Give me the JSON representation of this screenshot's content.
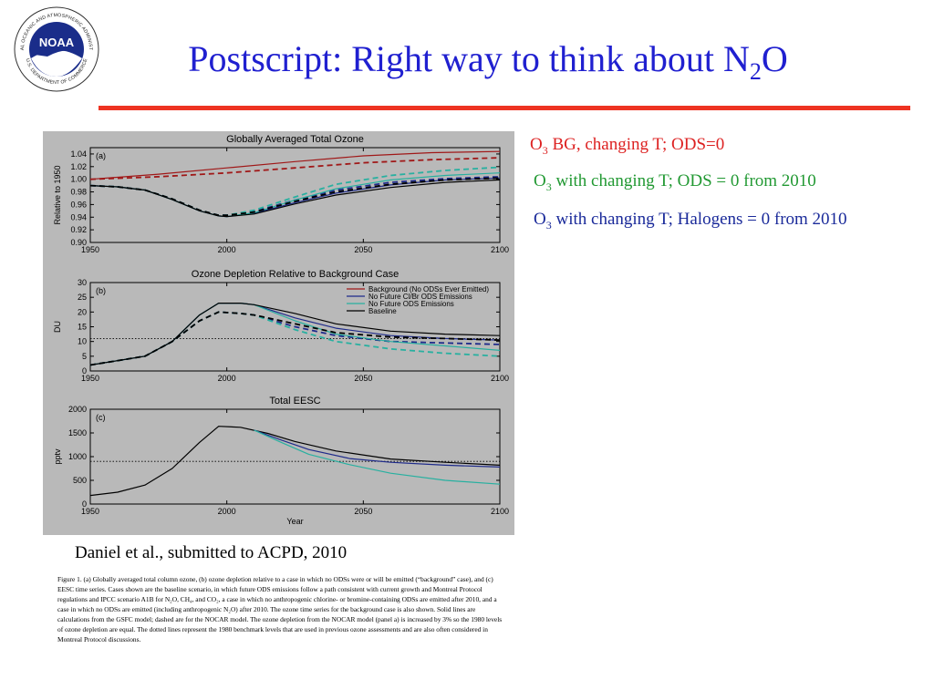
{
  "slide": {
    "title_main": "Postscript: Right way to think about N",
    "title_sub": "2",
    "title_end": "O",
    "logo_text": "NOAA",
    "logo_ring_top": "NATIONAL OCEANIC AND ATMOSPHERIC ADMINISTRATION",
    "logo_ring_bottom": "U.S. DEPARTMENT OF COMMERCE",
    "citation": "Daniel et al., submitted to ACPD, 2010",
    "caption": "Figure 1.  (a) Globally averaged total column ozone, (b) ozone depletion relative to a case in which no ODSs were or will be emitted (“background” case), and (c) EESC time series.  Cases shown are the baseline scenario, in which future ODS emissions follow a path consistent with current growth and Montreal Protocol regulations and IPCC scenario A1B for N₂O, CH₄, and CO₂, a case in which no anthropogenic chlorine- or bromine-containing ODSs are emitted after 2010, and a case in which no ODSs are emitted (including anthropogenic N₂O) after 2010.  The ozone time series for the background case is also shown.  Solid lines are calculations from the GSFC model; dashed are for the NOCAR model. The ozone depletion from the NOCAR model (panel a) is increased by 3% so the 1980 levels of ozone depletion are equal. The dotted lines represent the 1980 benchmark levels that are used in previous ozone assessments and are also often considered in Montreal Protocol discussions.",
    "notes": [
      {
        "pre": "O",
        "sub": "3",
        "post": " BG, changing T; ODS=0",
        "color": "#dd2222"
      },
      {
        "pre": "O",
        "sub": "3",
        "post": " with changing T; ODS = 0 from 2010",
        "color": "#229933"
      },
      {
        "pre": "O",
        "sub": "3",
        "post": " with changing T; Halogens = 0 from 2010",
        "color": "#1a2a9a"
      }
    ]
  },
  "chart_data": [
    {
      "type": "line",
      "title": "Globally Averaged Total Ozone",
      "panel_label": "(a)",
      "xlabel": "",
      "ylabel": "Relative to 1950",
      "xlim": [
        1950,
        2100
      ],
      "ylim": [
        0.9,
        1.05
      ],
      "xticks": [
        1950,
        2000,
        2050,
        2100
      ],
      "yticks": [
        0.9,
        0.92,
        0.94,
        0.96,
        0.98,
        1.0,
        1.02,
        1.04
      ],
      "ytick_labels": [
        "0.90",
        "0.92",
        "0.94",
        "0.96",
        "0.98",
        "1.00",
        "1.02",
        "1.04"
      ],
      "series": [
        {
          "name": "Background (No ODSs Ever Emitted)",
          "color": "#a01818",
          "dash": false,
          "x": [
            1950,
            1975,
            2000,
            2025,
            2050,
            2075,
            2100
          ],
          "y": [
            1.0,
            1.008,
            1.018,
            1.028,
            1.037,
            1.042,
            1.044
          ]
        },
        {
          "name": "Background (No ODSs Ever Emitted)",
          "color": "#a01818",
          "dash": true,
          "x": [
            1950,
            1975,
            2000,
            2025,
            2050,
            2075,
            2100
          ],
          "y": [
            1.0,
            1.004,
            1.01,
            1.018,
            1.026,
            1.031,
            1.034
          ]
        },
        {
          "name": "No Future Cl/Br ODS Emissions",
          "color": "#1e2a8a",
          "dash": false,
          "x": [
            1950,
            1960,
            1970,
            1980,
            1990,
            1997,
            2000,
            2010,
            2025,
            2040,
            2060,
            2080,
            2100
          ],
          "y": [
            0.99,
            0.988,
            0.983,
            0.968,
            0.95,
            0.942,
            0.941,
            0.946,
            0.963,
            0.978,
            0.991,
            0.999,
            1.002
          ]
        },
        {
          "name": "No Future Cl/Br ODS Emissions",
          "color": "#1e2a8a",
          "dash": true,
          "x": [
            1950,
            1960,
            1970,
            1980,
            1990,
            1997,
            2000,
            2010,
            2025,
            2040,
            2060,
            2080,
            2100
          ],
          "y": [
            0.99,
            0.988,
            0.983,
            0.969,
            0.951,
            0.943,
            0.943,
            0.949,
            0.967,
            0.983,
            0.995,
            1.001,
            1.004
          ]
        },
        {
          "name": "No Future ODS Emissions",
          "color": "#28b0a0",
          "dash": false,
          "x": [
            1950,
            1960,
            1970,
            1980,
            1990,
            1997,
            2000,
            2010,
            2025,
            2040,
            2060,
            2080,
            2100
          ],
          "y": [
            0.99,
            0.988,
            0.983,
            0.968,
            0.95,
            0.942,
            0.941,
            0.947,
            0.967,
            0.985,
            0.999,
            1.006,
            1.01
          ]
        },
        {
          "name": "No Future ODS Emissions",
          "color": "#28b0a0",
          "dash": true,
          "x": [
            1950,
            1960,
            1970,
            1980,
            1990,
            1997,
            2000,
            2010,
            2025,
            2040,
            2060,
            2080,
            2100
          ],
          "y": [
            0.99,
            0.988,
            0.983,
            0.969,
            0.951,
            0.943,
            0.943,
            0.951,
            0.972,
            0.992,
            1.006,
            1.014,
            1.019
          ]
        },
        {
          "name": "Baseline",
          "color": "#000000",
          "dash": false,
          "x": [
            1950,
            1960,
            1970,
            1980,
            1990,
            1997,
            2000,
            2010,
            2025,
            2040,
            2060,
            2080,
            2100
          ],
          "y": [
            0.99,
            0.988,
            0.983,
            0.968,
            0.95,
            0.942,
            0.941,
            0.945,
            0.961,
            0.975,
            0.987,
            0.995,
            0.999
          ]
        },
        {
          "name": "Baseline",
          "color": "#000000",
          "dash": true,
          "x": [
            1950,
            1960,
            1970,
            1980,
            1990,
            1997,
            2000,
            2010,
            2025,
            2040,
            2060,
            2080,
            2100
          ],
          "y": [
            0.99,
            0.988,
            0.983,
            0.969,
            0.951,
            0.943,
            0.943,
            0.948,
            0.965,
            0.98,
            0.992,
            0.999,
            1.002
          ]
        }
      ],
      "grid": false,
      "legend": "none"
    },
    {
      "type": "line",
      "title": "Ozone Depletion Relative to Background Case",
      "panel_label": "(b)",
      "xlabel": "",
      "ylabel": "DU",
      "xlim": [
        1950,
        2100
      ],
      "ylim": [
        0,
        30
      ],
      "xticks": [
        1950,
        2000,
        2050,
        2100
      ],
      "yticks": [
        0,
        5,
        10,
        15,
        20,
        25,
        30
      ],
      "ytick_labels": [
        "0",
        "5",
        "10",
        "15",
        "20",
        "25",
        "30"
      ],
      "benchmark_1980": 11,
      "series": [
        {
          "name": "No Future Cl/Br ODS Emissions",
          "color": "#1e2a8a",
          "dash": false,
          "x": [
            1950,
            1970,
            1980,
            1990,
            1997,
            2005,
            2010,
            2025,
            2040,
            2060,
            2080,
            2100
          ],
          "y": [
            2,
            5,
            10,
            19,
            23,
            23,
            22.5,
            18,
            14.5,
            12,
            11,
            10.5
          ]
        },
        {
          "name": "No Future Cl/Br ODS Emissions",
          "color": "#1e2a8a",
          "dash": true,
          "x": [
            1950,
            1970,
            1980,
            1990,
            1997,
            2005,
            2010,
            2025,
            2040,
            2060,
            2080,
            2100
          ],
          "y": [
            2,
            5,
            10,
            17,
            20,
            19.5,
            19,
            15,
            12,
            10,
            9.5,
            9
          ]
        },
        {
          "name": "No Future ODS Emissions",
          "color": "#28b0a0",
          "dash": false,
          "x": [
            1950,
            1970,
            1980,
            1990,
            1997,
            2005,
            2010,
            2025,
            2040,
            2060,
            2080,
            2100
          ],
          "y": [
            2,
            5,
            10,
            19,
            23,
            23,
            22.5,
            17,
            12.5,
            10,
            8.5,
            7
          ]
        },
        {
          "name": "No Future ODS Emissions",
          "color": "#28b0a0",
          "dash": true,
          "x": [
            1950,
            1970,
            1980,
            1990,
            1997,
            2005,
            2010,
            2025,
            2040,
            2060,
            2080,
            2100
          ],
          "y": [
            2,
            5,
            10,
            17,
            20,
            19.5,
            19,
            14,
            10,
            7.5,
            6,
            5
          ]
        },
        {
          "name": "Baseline",
          "color": "#000000",
          "dash": false,
          "x": [
            1950,
            1970,
            1980,
            1990,
            1997,
            2005,
            2010,
            2025,
            2040,
            2060,
            2080,
            2100
          ],
          "y": [
            2,
            5,
            10,
            19,
            23,
            23,
            22.5,
            19.5,
            16,
            13.5,
            12.5,
            12
          ]
        },
        {
          "name": "Baseline",
          "color": "#000000",
          "dash": true,
          "x": [
            1950,
            1970,
            1980,
            1990,
            1997,
            2005,
            2010,
            2025,
            2040,
            2060,
            2080,
            2100
          ],
          "y": [
            2,
            5,
            10,
            17,
            20,
            19.5,
            19,
            16,
            13,
            11.5,
            11,
            10.5
          ]
        }
      ],
      "legend_entries": [
        {
          "label": "Background (No ODSs Ever Emitted)",
          "color": "#a01818"
        },
        {
          "label": "No Future Cl/Br ODS Emissions",
          "color": "#1e2a8a"
        },
        {
          "label": "No Future ODS Emissions",
          "color": "#28b0a0"
        },
        {
          "label": "Baseline",
          "color": "#000000"
        }
      ],
      "grid": false,
      "legend": "top-right"
    },
    {
      "type": "line",
      "title": "Total EESC",
      "panel_label": "(c)",
      "xlabel": "Year",
      "ylabel": "pptv",
      "xlim": [
        1950,
        2100
      ],
      "ylim": [
        0,
        2000
      ],
      "xticks": [
        1950,
        2000,
        2050,
        2100
      ],
      "yticks": [
        0,
        500,
        1000,
        1500,
        2000
      ],
      "ytick_labels": [
        "0",
        "500",
        "1000",
        "1500",
        "2000"
      ],
      "benchmark_1980": 900,
      "series": [
        {
          "name": "Baseline",
          "color": "#000000",
          "dash": false,
          "x": [
            1950,
            1960,
            1970,
            1980,
            1990,
            1997,
            2005,
            2015,
            2025,
            2040,
            2060,
            2080,
            2100
          ],
          "y": [
            180,
            250,
            400,
            750,
            1300,
            1640,
            1620,
            1490,
            1320,
            1120,
            950,
            880,
            820
          ]
        },
        {
          "name": "No Future Cl/Br ODS Emissions",
          "color": "#1e2a8a",
          "dash": false,
          "x": [
            2010,
            2020,
            2030,
            2045,
            2060,
            2080,
            2100
          ],
          "y": [
            1560,
            1350,
            1150,
            960,
            880,
            820,
            780
          ]
        },
        {
          "name": "No Future ODS Emissions",
          "color": "#28b0a0",
          "dash": false,
          "x": [
            2010,
            2020,
            2030,
            2045,
            2060,
            2080,
            2100
          ],
          "y": [
            1560,
            1300,
            1050,
            830,
            650,
            500,
            420
          ]
        }
      ],
      "grid": false,
      "legend": "none"
    }
  ]
}
